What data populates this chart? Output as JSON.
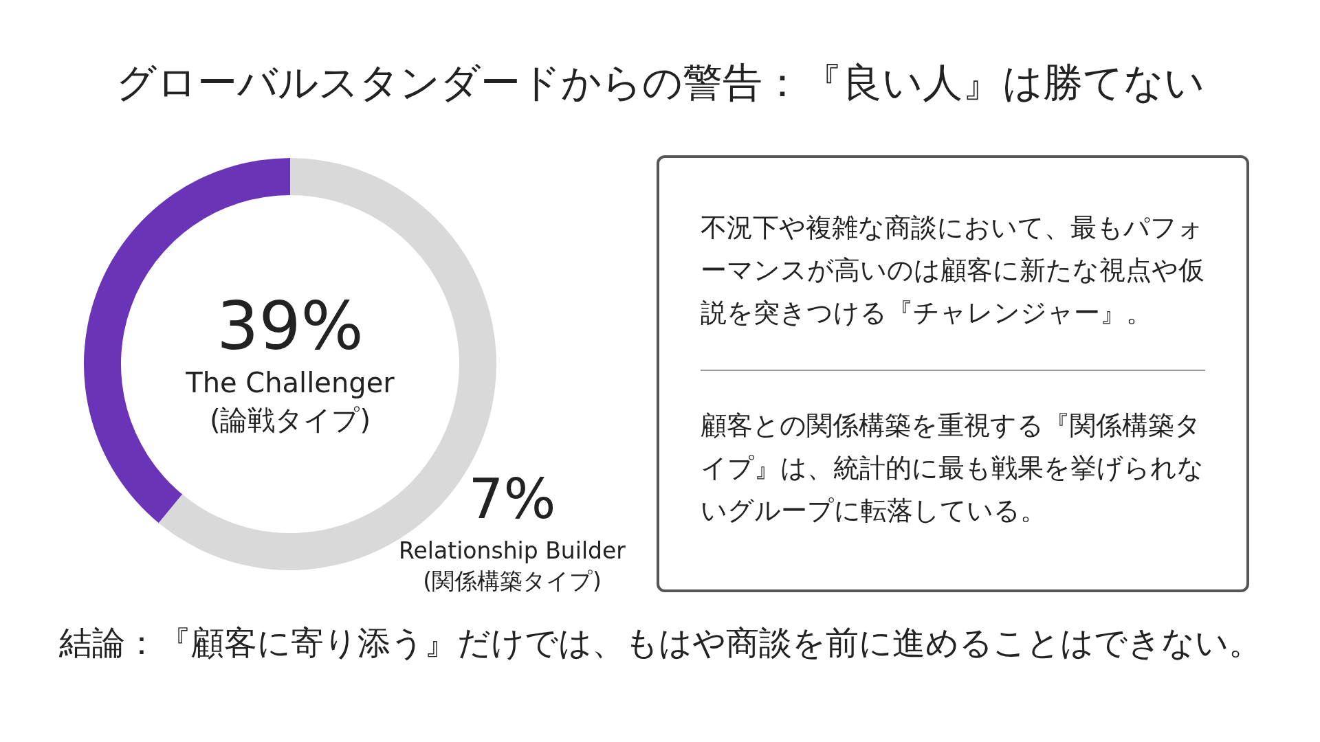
{
  "chart_data": [
    {
      "type": "donut",
      "title": "グローバルスタンダードからの警告：『良い人』は勝てない",
      "categories": [
        "The Challenger\n(論戦タイプ)",
        null
      ],
      "values": [
        39,
        61
      ],
      "colors": [
        "#6a34b8",
        "#d9d9d9"
      ],
      "value_labels": [
        "39%",
        null
      ],
      "annotations": [
        "7%",
        "Relationship Builder\n(関係構築タイプ)",
        "結論：『顧客に寄り添う』だけでは、もはや商談を前に進めることはできない。"
      ]
    },
    {
      "type": "other",
      "annotations": [
        "不況下や複雑な商談において、最もパフォーマンスが高いのは顧客に新たな視点や仮説を突きつける『チャレンジャー』。",
        "顧客との関係構築を重視する『関係構築タイプ』は、統計的に最も戦果を挙げられないグループに転落している。"
      ]
    }
  ]
}
